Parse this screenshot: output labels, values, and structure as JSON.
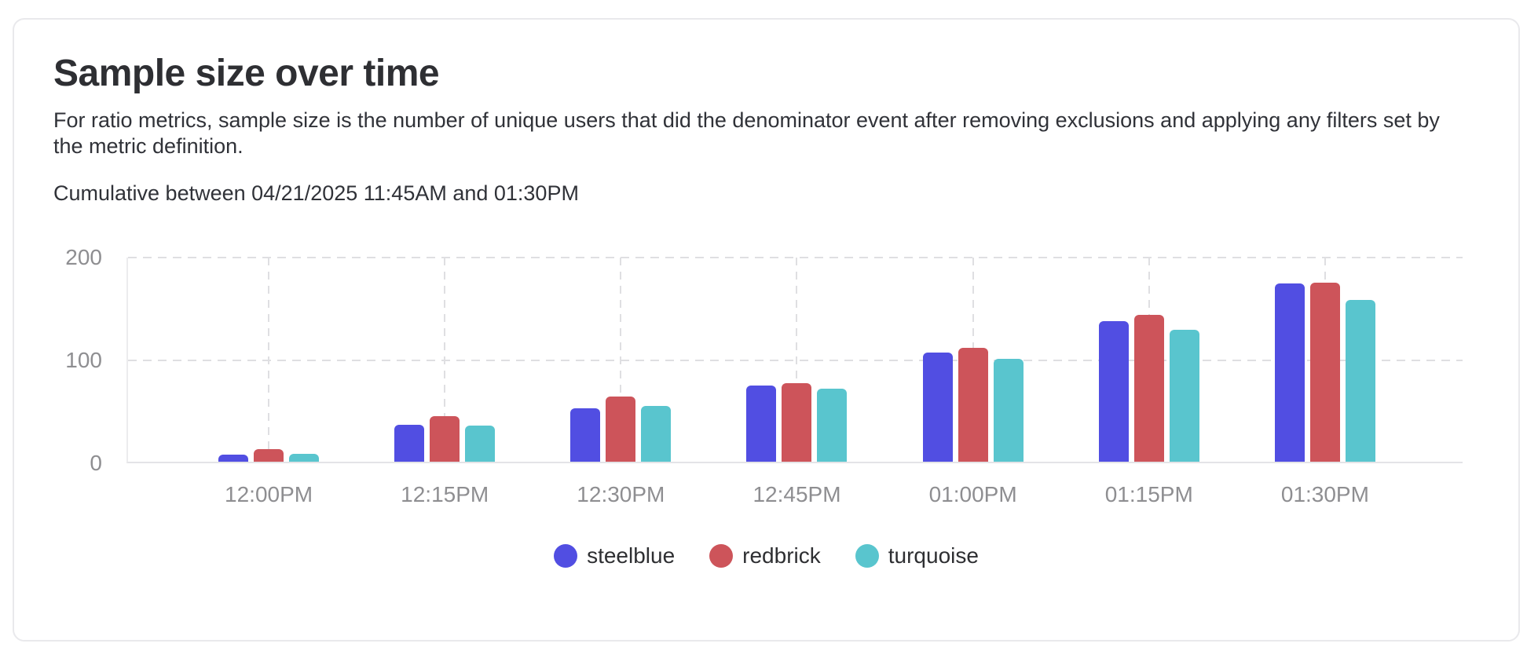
{
  "card": {
    "title": "Sample size over time",
    "description": "For ratio metrics, sample size is the number of unique users that did the denominator event after removing exclusions and applying any filters set by the metric definition.",
    "range_label": "Cumulative between 04/21/2025 11:45AM and 01:30PM"
  },
  "chart_data": {
    "type": "bar",
    "title": "Sample size over time",
    "subtitle": "Cumulative between 04/21/2025 11:45AM and 01:30PM",
    "categories": [
      "12:00PM",
      "12:15PM",
      "12:30PM",
      "12:45PM",
      "01:00PM",
      "01:15PM",
      "01:30PM"
    ],
    "series": [
      {
        "name": "steelblue",
        "color": "#514ee2",
        "values": [
          7,
          36,
          52,
          74,
          106,
          137,
          173
        ]
      },
      {
        "name": "redbrick",
        "color": "#cd545a",
        "values": [
          12,
          44,
          63,
          76,
          111,
          143,
          174
        ]
      },
      {
        "name": "turquoise",
        "color": "#59c5ce",
        "values": [
          8,
          35,
          54,
          71,
          100,
          128,
          157
        ]
      }
    ],
    "xlabel": "",
    "ylabel": "",
    "ylim": [
      0,
      200
    ],
    "yticks": [
      0,
      100,
      200
    ],
    "grid": "dashed",
    "legend_position": "bottom",
    "axis_text_color": "#8e8e91",
    "gridline_color": "#dfdfe2"
  }
}
